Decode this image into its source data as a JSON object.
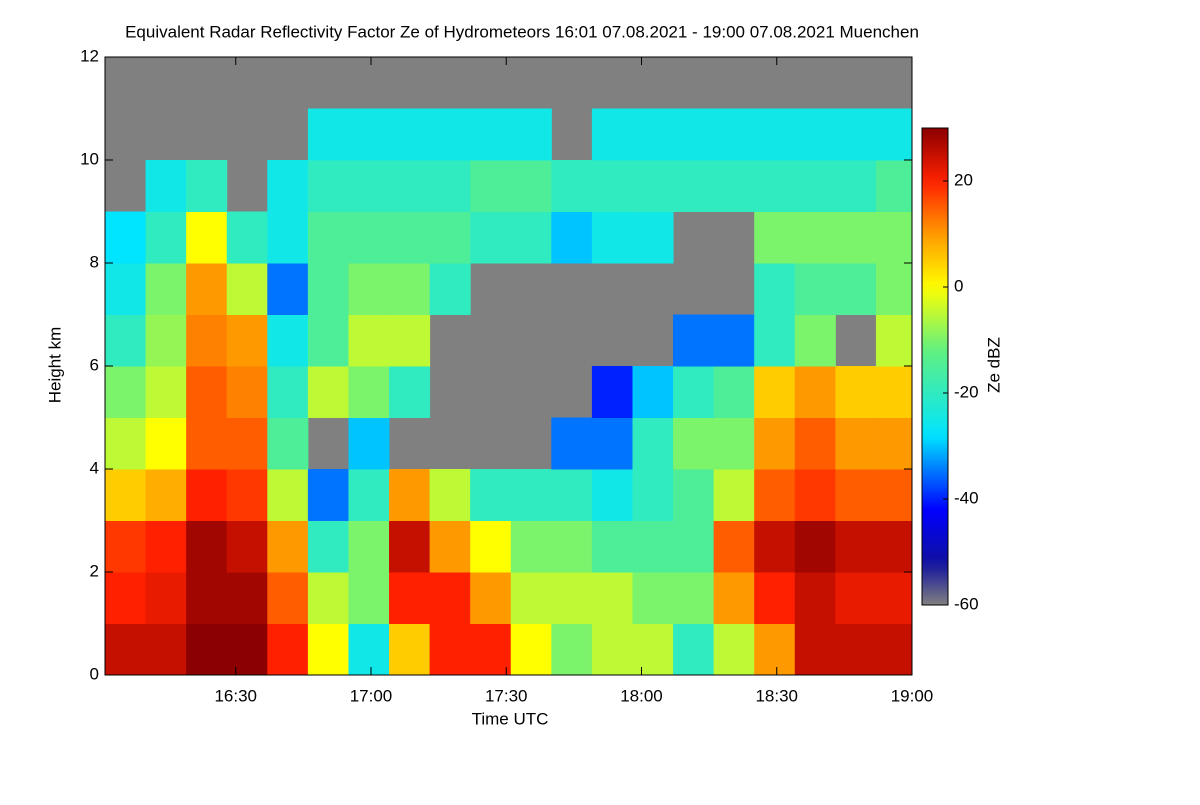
{
  "chart_data": {
    "type": "heatmap",
    "title": "Equivalent Radar Reflectivity Factor Ze of Hydrometeors   16:01 07.08.2021 - 19:00 07.08.2021 Muenchen",
    "xlabel": "Time UTC",
    "ylabel": "Height km",
    "colorbar_label": "Ze dBZ",
    "x": [
      "16:01",
      "16:10",
      "16:19",
      "16:28",
      "16:37",
      "16:46",
      "16:55",
      "17:04",
      "17:13",
      "17:22",
      "17:31",
      "17:40",
      "17:49",
      "17:58",
      "18:07",
      "18:16",
      "18:25",
      "18:34",
      "18:43",
      "18:52"
    ],
    "xlim": [
      "16:01",
      "19:00"
    ],
    "xticks": [
      "16:30",
      "17:00",
      "17:30",
      "18:00",
      "18:30",
      "19:00"
    ],
    "y": [
      0,
      1,
      2,
      3,
      4,
      5,
      6,
      7,
      8,
      9,
      10,
      11
    ],
    "ylim": [
      0,
      12
    ],
    "yticks": [
      0,
      2,
      4,
      6,
      8,
      10,
      12
    ],
    "clim": [
      -60,
      30
    ],
    "cticks": [
      -60,
      -40,
      -20,
      0,
      20
    ],
    "background": "#808080",
    "colorscale": [
      [
        -60,
        "#808080"
      ],
      [
        -52,
        "#1010a0"
      ],
      [
        -42,
        "#0000ff"
      ],
      [
        -28,
        "#00e5ff"
      ],
      [
        -12,
        "#60f080"
      ],
      [
        0,
        "#ffff00"
      ],
      [
        10,
        "#ff9900"
      ],
      [
        20,
        "#ff2000"
      ],
      [
        30,
        "#8b0000"
      ]
    ],
    "z": [
      [
        25,
        25,
        30,
        30,
        20,
        0,
        -25,
        5,
        20,
        20,
        0,
        -10,
        -5,
        -5,
        -20,
        -5,
        10,
        25,
        25,
        25
      ],
      [
        20,
        22,
        28,
        28,
        15,
        -5,
        -10,
        20,
        20,
        10,
        -5,
        -5,
        -5,
        -10,
        -10,
        10,
        20,
        25,
        22,
        22
      ],
      [
        18,
        20,
        28,
        25,
        10,
        -20,
        -10,
        25,
        10,
        0,
        -10,
        -10,
        -15,
        -15,
        -15,
        15,
        25,
        28,
        25,
        25
      ],
      [
        5,
        8,
        20,
        18,
        -5,
        -35,
        -20,
        10,
        -5,
        -20,
        -20,
        -20,
        -25,
        -20,
        -15,
        -5,
        15,
        18,
        15,
        15
      ],
      [
        -5,
        0,
        15,
        15,
        -15,
        null,
        -30,
        null,
        null,
        null,
        null,
        -35,
        -35,
        -20,
        -10,
        -10,
        10,
        15,
        10,
        10
      ],
      [
        -10,
        -5,
        15,
        12,
        -20,
        -5,
        -10,
        -20,
        null,
        null,
        null,
        null,
        -40,
        -30,
        -20,
        -15,
        5,
        10,
        5,
        5
      ],
      [
        -20,
        -8,
        12,
        10,
        -25,
        -15,
        -5,
        -5,
        null,
        null,
        null,
        null,
        null,
        null,
        -35,
        -35,
        -20,
        -10,
        null,
        -5
      ],
      [
        -25,
        -10,
        10,
        -5,
        -35,
        -15,
        -10,
        -10,
        -20,
        null,
        null,
        null,
        null,
        null,
        null,
        null,
        -20,
        -15,
        -15,
        -10
      ],
      [
        -28,
        -20,
        0,
        -20,
        -25,
        -15,
        -15,
        -15,
        -15,
        -20,
        -20,
        -30,
        -25,
        -25,
        null,
        null,
        -10,
        -10,
        -10,
        -10
      ],
      [
        null,
        -25,
        -20,
        null,
        -25,
        -20,
        -20,
        -20,
        -20,
        -15,
        -15,
        -20,
        -20,
        -20,
        -20,
        -20,
        -20,
        -20,
        -20,
        -15
      ],
      [
        null,
        null,
        null,
        null,
        null,
        -25,
        -25,
        -25,
        -25,
        -25,
        -25,
        null,
        -25,
        -25,
        -25,
        -25,
        -25,
        -25,
        -25,
        -25
      ],
      [
        null,
        null,
        null,
        null,
        null,
        null,
        null,
        null,
        null,
        null,
        null,
        null,
        null,
        null,
        null,
        null,
        null,
        null,
        null,
        null
      ]
    ]
  }
}
